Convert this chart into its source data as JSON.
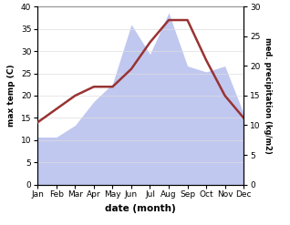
{
  "months": [
    "Jan",
    "Feb",
    "Mar",
    "Apr",
    "May",
    "Jun",
    "Jul",
    "Aug",
    "Sep",
    "Oct",
    "Nov",
    "Dec"
  ],
  "temp": [
    14,
    17,
    20,
    22,
    22,
    26,
    32,
    37,
    37,
    28,
    20,
    15
  ],
  "precip": [
    8,
    8,
    10,
    14,
    17,
    27,
    22,
    29,
    20,
    19,
    20,
    12
  ],
  "temp_color": "#993333",
  "precip_color_fill": "#c0c8f0",
  "temp_ylim": [
    0,
    40
  ],
  "precip_ylim": [
    0,
    30
  ],
  "xlabel": "date (month)",
  "ylabel_left": "max temp (C)",
  "ylabel_right": "med. precipitation (kg/m2)"
}
